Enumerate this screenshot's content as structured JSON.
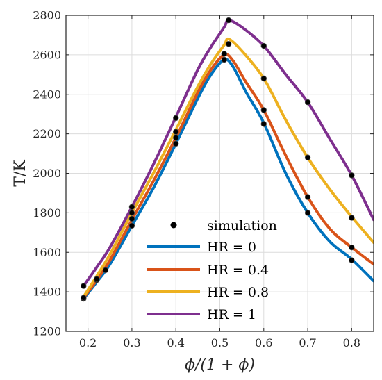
{
  "chart_data": {
    "type": "line",
    "xlabel": "ϕ/(1 + ϕ)",
    "ylabel": "T/K",
    "xlim": [
      0.15,
      0.85
    ],
    "ylim": [
      1200,
      2800
    ],
    "xticks": [
      0.2,
      0.3,
      0.4,
      0.5,
      0.6,
      0.7,
      0.8
    ],
    "xtick_labels": [
      "0.2",
      "0.3",
      "0.4",
      "0.5",
      "0.6",
      "0.7",
      "0.8"
    ],
    "yticks": [
      1200,
      1400,
      1600,
      1800,
      2000,
      2200,
      2400,
      2600,
      2800
    ],
    "ytick_labels": [
      "1200",
      "1400",
      "1600",
      "1800",
      "2000",
      "2200",
      "2400",
      "2600",
      "2800"
    ],
    "grid": true,
    "legend_position": "bottom-center",
    "series": [
      {
        "name": "HR = 0",
        "color": "#0072BD",
        "x": [
          0.19,
          0.22,
          0.25,
          0.3,
          0.35,
          0.4,
          0.45,
          0.48,
          0.51,
          0.53,
          0.56,
          0.6,
          0.65,
          0.7,
          0.75,
          0.8,
          0.85
        ],
        "y": [
          1365,
          1450,
          1540,
          1735,
          1930,
          2150,
          2380,
          2500,
          2575,
          2540,
          2410,
          2255,
          2000,
          1800,
          1655,
          1565,
          1455
        ]
      },
      {
        "name": "HR = 0.4",
        "color": "#D95319",
        "x": [
          0.19,
          0.22,
          0.25,
          0.3,
          0.35,
          0.4,
          0.45,
          0.48,
          0.51,
          0.53,
          0.56,
          0.6,
          0.65,
          0.7,
          0.75,
          0.8,
          0.85
        ],
        "y": [
          1370,
          1460,
          1560,
          1765,
          1965,
          2180,
          2410,
          2525,
          2600,
          2570,
          2460,
          2320,
          2090,
          1880,
          1720,
          1625,
          1540
        ]
      },
      {
        "name": "HR = 0.8",
        "color": "#EDB120",
        "x": [
          0.19,
          0.22,
          0.25,
          0.3,
          0.35,
          0.4,
          0.45,
          0.48,
          0.51,
          0.52,
          0.55,
          0.6,
          0.65,
          0.7,
          0.75,
          0.8,
          0.85
        ],
        "y": [
          1375,
          1480,
          1590,
          1800,
          2005,
          2220,
          2440,
          2555,
          2650,
          2680,
          2620,
          2480,
          2270,
          2080,
          1920,
          1780,
          1650
        ]
      },
      {
        "name": "HR = 1",
        "color": "#7E2F8E",
        "x": [
          0.19,
          0.22,
          0.25,
          0.3,
          0.35,
          0.4,
          0.45,
          0.48,
          0.51,
          0.52,
          0.55,
          0.6,
          0.65,
          0.7,
          0.75,
          0.8,
          0.85
        ],
        "y": [
          1430,
          1525,
          1625,
          1830,
          2050,
          2285,
          2525,
          2640,
          2740,
          2775,
          2740,
          2645,
          2500,
          2360,
          2175,
          1990,
          1765
        ]
      }
    ],
    "simulation": {
      "name": "simulation",
      "color": "#000000",
      "x": [
        0.19,
        0.22,
        0.24,
        0.3,
        0.4,
        0.51,
        0.6,
        0.7,
        0.8,
        0.19,
        0.22,
        0.3,
        0.4,
        0.51,
        0.6,
        0.7,
        0.8,
        0.3,
        0.4,
        0.52,
        0.6,
        0.7,
        0.8,
        0.19,
        0.3,
        0.4,
        0.52,
        0.6,
        0.7,
        0.8
      ],
      "y": [
        1365,
        1460,
        1510,
        1735,
        2150,
        2575,
        2250,
        1800,
        1560,
        1370,
        1465,
        1770,
        2180,
        2605,
        2320,
        1880,
        1625,
        1800,
        2210,
        2655,
        2480,
        2080,
        1775,
        1430,
        1830,
        2280,
        2775,
        2645,
        2360,
        1990
      ]
    }
  }
}
